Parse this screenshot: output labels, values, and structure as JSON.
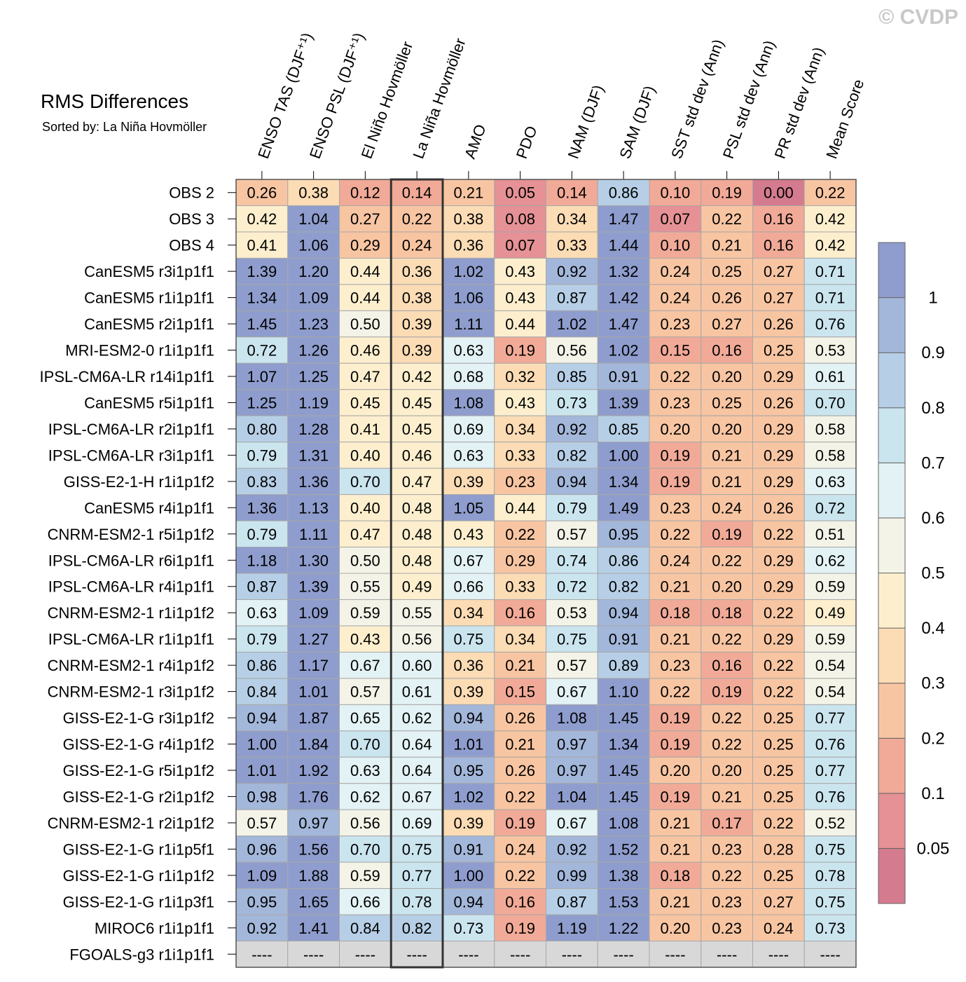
{
  "watermark": "© CVDP",
  "chart_data": {
    "type": "heatmap",
    "title": "RMS Differences",
    "subtitle": "Sorted by: La Niña Hovmöller",
    "highlight_column": 3,
    "columns": [
      "ENSO TAS (DJF⁺¹)",
      "ENSO PSL (DJF⁺¹)",
      "El Niño Hovmöller",
      "La Niña Hovmöller",
      "AMO",
      "PDO",
      "NAM (DJF)",
      "SAM (DJF)",
      "SST std dev (Ann)",
      "PSL std dev (Ann)",
      "PR std dev (Ann)",
      "Mean Score"
    ],
    "rows": [
      "OBS 2",
      "OBS 3",
      "OBS 4",
      "CanESM5 r3i1p1f1",
      "CanESM5 r1i1p1f1",
      "CanESM5 r2i1p1f1",
      "MRI-ESM2-0 r1i1p1f1",
      "IPSL-CM6A-LR r14i1p1f1",
      "CanESM5 r5i1p1f1",
      "IPSL-CM6A-LR r2i1p1f1",
      "IPSL-CM6A-LR r3i1p1f1",
      "GISS-E2-1-H r1i1p1f2",
      "CanESM5 r4i1p1f1",
      "CNRM-ESM2-1 r5i1p1f2",
      "IPSL-CM6A-LR r6i1p1f1",
      "IPSL-CM6A-LR r4i1p1f1",
      "CNRM-ESM2-1 r1i1p1f2",
      "IPSL-CM6A-LR r1i1p1f1",
      "CNRM-ESM2-1 r4i1p1f2",
      "CNRM-ESM2-1 r3i1p1f2",
      "GISS-E2-1-G r3i1p1f2",
      "GISS-E2-1-G r4i1p1f2",
      "GISS-E2-1-G r5i1p1f2",
      "GISS-E2-1-G r2i1p1f2",
      "CNRM-ESM2-1 r2i1p1f2",
      "GISS-E2-1-G r1i1p5f1",
      "GISS-E2-1-G r1i1p1f2",
      "GISS-E2-1-G r1i1p3f1",
      "MIROC6 r1i1p1f1",
      "FGOALS-g3 r1i1p1f1"
    ],
    "values": [
      [
        "0.26",
        "0.38",
        "0.12",
        "0.14",
        "0.21",
        "0.05",
        "0.14",
        "0.86",
        "0.10",
        "0.19",
        "0.00",
        "0.22"
      ],
      [
        "0.42",
        "1.04",
        "0.27",
        "0.22",
        "0.38",
        "0.08",
        "0.34",
        "1.47",
        "0.07",
        "0.22",
        "0.16",
        "0.42"
      ],
      [
        "0.41",
        "1.06",
        "0.29",
        "0.24",
        "0.36",
        "0.07",
        "0.33",
        "1.44",
        "0.10",
        "0.21",
        "0.16",
        "0.42"
      ],
      [
        "1.39",
        "1.20",
        "0.44",
        "0.36",
        "1.02",
        "0.43",
        "0.92",
        "1.32",
        "0.24",
        "0.25",
        "0.27",
        "0.71"
      ],
      [
        "1.34",
        "1.09",
        "0.44",
        "0.38",
        "1.06",
        "0.43",
        "0.87",
        "1.42",
        "0.24",
        "0.26",
        "0.27",
        "0.71"
      ],
      [
        "1.45",
        "1.23",
        "0.50",
        "0.39",
        "1.11",
        "0.44",
        "1.02",
        "1.47",
        "0.23",
        "0.27",
        "0.26",
        "0.76"
      ],
      [
        "0.72",
        "1.26",
        "0.46",
        "0.39",
        "0.63",
        "0.19",
        "0.56",
        "1.02",
        "0.15",
        "0.16",
        "0.25",
        "0.53"
      ],
      [
        "1.07",
        "1.25",
        "0.47",
        "0.42",
        "0.68",
        "0.32",
        "0.85",
        "0.91",
        "0.22",
        "0.20",
        "0.29",
        "0.61"
      ],
      [
        "1.25",
        "1.19",
        "0.45",
        "0.45",
        "1.08",
        "0.43",
        "0.73",
        "1.39",
        "0.23",
        "0.25",
        "0.26",
        "0.70"
      ],
      [
        "0.80",
        "1.28",
        "0.41",
        "0.45",
        "0.69",
        "0.34",
        "0.92",
        "0.85",
        "0.20",
        "0.20",
        "0.29",
        "0.58"
      ],
      [
        "0.79",
        "1.31",
        "0.40",
        "0.46",
        "0.63",
        "0.33",
        "0.82",
        "1.00",
        "0.19",
        "0.21",
        "0.29",
        "0.58"
      ],
      [
        "0.83",
        "1.36",
        "0.70",
        "0.47",
        "0.39",
        "0.23",
        "0.94",
        "1.34",
        "0.19",
        "0.21",
        "0.29",
        "0.63"
      ],
      [
        "1.36",
        "1.13",
        "0.40",
        "0.48",
        "1.05",
        "0.44",
        "0.79",
        "1.49",
        "0.23",
        "0.24",
        "0.26",
        "0.72"
      ],
      [
        "0.79",
        "1.11",
        "0.47",
        "0.48",
        "0.43",
        "0.22",
        "0.57",
        "0.95",
        "0.22",
        "0.19",
        "0.22",
        "0.51"
      ],
      [
        "1.18",
        "1.30",
        "0.50",
        "0.48",
        "0.67",
        "0.29",
        "0.74",
        "0.86",
        "0.24",
        "0.22",
        "0.29",
        "0.62"
      ],
      [
        "0.87",
        "1.39",
        "0.55",
        "0.49",
        "0.66",
        "0.33",
        "0.72",
        "0.82",
        "0.21",
        "0.20",
        "0.29",
        "0.59"
      ],
      [
        "0.63",
        "1.09",
        "0.59",
        "0.55",
        "0.34",
        "0.16",
        "0.53",
        "0.94",
        "0.18",
        "0.18",
        "0.22",
        "0.49"
      ],
      [
        "0.79",
        "1.27",
        "0.43",
        "0.56",
        "0.75",
        "0.34",
        "0.75",
        "0.91",
        "0.21",
        "0.22",
        "0.29",
        "0.59"
      ],
      [
        "0.86",
        "1.17",
        "0.67",
        "0.60",
        "0.36",
        "0.21",
        "0.57",
        "0.89",
        "0.23",
        "0.16",
        "0.22",
        "0.54"
      ],
      [
        "0.84",
        "1.01",
        "0.57",
        "0.61",
        "0.39",
        "0.15",
        "0.67",
        "1.10",
        "0.22",
        "0.19",
        "0.22",
        "0.54"
      ],
      [
        "0.94",
        "1.87",
        "0.65",
        "0.62",
        "0.94",
        "0.26",
        "1.08",
        "1.45",
        "0.19",
        "0.22",
        "0.25",
        "0.77"
      ],
      [
        "1.00",
        "1.84",
        "0.70",
        "0.64",
        "1.01",
        "0.21",
        "0.97",
        "1.34",
        "0.19",
        "0.22",
        "0.25",
        "0.76"
      ],
      [
        "1.01",
        "1.92",
        "0.63",
        "0.64",
        "0.95",
        "0.26",
        "0.97",
        "1.45",
        "0.20",
        "0.20",
        "0.25",
        "0.77"
      ],
      [
        "0.98",
        "1.76",
        "0.62",
        "0.67",
        "1.02",
        "0.22",
        "1.04",
        "1.45",
        "0.19",
        "0.21",
        "0.25",
        "0.76"
      ],
      [
        "0.57",
        "0.97",
        "0.56",
        "0.69",
        "0.39",
        "0.19",
        "0.67",
        "1.08",
        "0.21",
        "0.17",
        "0.22",
        "0.52"
      ],
      [
        "0.96",
        "1.56",
        "0.70",
        "0.75",
        "0.91",
        "0.24",
        "0.92",
        "1.52",
        "0.21",
        "0.23",
        "0.28",
        "0.75"
      ],
      [
        "1.09",
        "1.88",
        "0.59",
        "0.77",
        "1.00",
        "0.22",
        "0.99",
        "1.38",
        "0.18",
        "0.22",
        "0.25",
        "0.78"
      ],
      [
        "0.95",
        "1.65",
        "0.66",
        "0.78",
        "0.94",
        "0.16",
        "0.87",
        "1.53",
        "0.21",
        "0.23",
        "0.27",
        "0.75"
      ],
      [
        "0.92",
        "1.41",
        "0.84",
        "0.82",
        "0.73",
        "0.19",
        "1.19",
        "1.22",
        "0.20",
        "0.23",
        "0.24",
        "0.73"
      ],
      [
        "----",
        "----",
        "----",
        "----",
        "----",
        "----",
        "----",
        "----",
        "----",
        "----",
        "----",
        "----"
      ]
    ],
    "missing_label": "----",
    "colorbar": {
      "levels": [
        0.05,
        0.1,
        0.2,
        0.3,
        0.4,
        0.5,
        0.6,
        0.7,
        0.8,
        0.9,
        1
      ],
      "tick_labels": [
        "0.05",
        "0.1",
        "0.2",
        "0.3",
        "0.4",
        "0.5",
        "0.6",
        "0.7",
        "0.8",
        "0.9",
        "1"
      ],
      "colors": [
        "#d47b8f",
        "#e59195",
        "#f1aa97",
        "#f8c5a2",
        "#fbdcb5",
        "#fdefce",
        "#f4f3e8",
        "#e3f2f4",
        "#cbe5ef",
        "#b6cfe6",
        "#a3b7da",
        "#8e9dcd"
      ],
      "missing_color": "#d8d8d8"
    }
  }
}
